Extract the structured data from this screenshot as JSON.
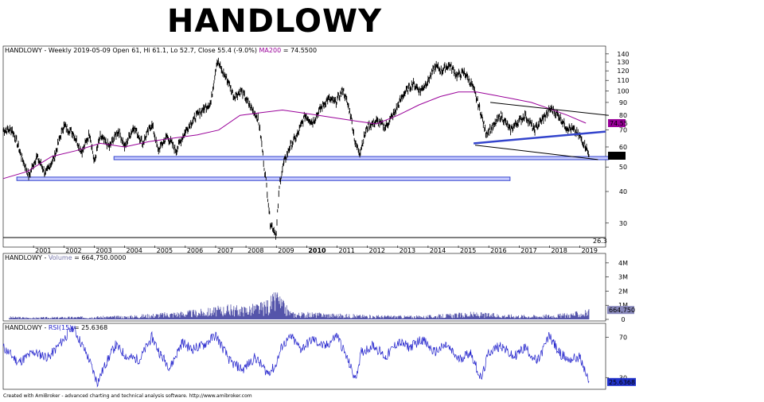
{
  "title": "HANDLOWY",
  "footer": "Created with AmiBroker - advanced charting and technical analysis software. http://www.amibroker.com",
  "colors": {
    "price": "#000000",
    "ma": "#990099",
    "trend": "#3344cc",
    "zone_fill": "#c8ccff",
    "zone_stroke": "#3344cc",
    "volume": "#5555aa",
    "rsi": "#2222cc"
  },
  "chart_data": [
    {
      "type": "line",
      "panel": "price",
      "header": {
        "prefix": "HANDLOWY - Weekly 2019-05-09 Open 61, Hi 61.1, Lo 52.7, Close 55.4 (-9.0%)",
        "ma_label": "MA200",
        "ma_value_text": " = 74.5500"
      },
      "scale": "log",
      "ylim": [
        26.3,
        145
      ],
      "yticks": [
        30,
        40,
        50,
        60,
        70,
        80,
        90,
        100,
        110,
        120,
        130,
        140
      ],
      "xticks": [
        "2001",
        "2002",
        "2003",
        "2004",
        "2005",
        "2006",
        "2007",
        "2008",
        "2009",
        "2010",
        "2011",
        "2012",
        "2013",
        "2014",
        "2015",
        "2016",
        "2017",
        "2018",
        "2019"
      ],
      "bold_xtick": "2010",
      "close_label": "55.4",
      "ma_label_value": "74.55",
      "min_label": "26.3",
      "series": [
        {
          "name": "Close",
          "x": [
            2000.0,
            2000.3,
            2000.6,
            2000.85,
            2001.1,
            2001.4,
            2001.7,
            2002.0,
            2002.3,
            2002.6,
            2002.85,
            2003.0,
            2003.2,
            2003.5,
            2003.8,
            2004.0,
            2004.3,
            2004.6,
            2004.9,
            2005.1,
            2005.4,
            2005.7,
            2006.0,
            2006.3,
            2006.6,
            2006.85,
            2007.05,
            2007.2,
            2007.4,
            2007.6,
            2007.85,
            2008.1,
            2008.4,
            2008.6,
            2008.8,
            2009.0,
            2009.12,
            2009.25,
            2009.45,
            2009.7,
            2009.95,
            2010.2,
            2010.45,
            2010.7,
            2010.95,
            2011.2,
            2011.45,
            2011.6,
            2011.75,
            2012.0,
            2012.3,
            2012.6,
            2012.9,
            2013.2,
            2013.5,
            2013.75,
            2014.0,
            2014.25,
            2014.45,
            2014.7,
            2014.95,
            2015.2,
            2015.45,
            2015.7,
            2015.9,
            2016.15,
            2016.4,
            2016.7,
            2016.95,
            2017.2,
            2017.5,
            2017.8,
            2018.05,
            2018.3,
            2018.55,
            2018.8,
            2019.0,
            2019.2,
            2019.3
          ],
          "y": [
            70,
            70,
            55,
            46,
            55,
            47,
            55,
            73,
            68,
            57,
            68,
            52,
            66,
            60,
            70,
            60,
            72,
            62,
            74,
            58,
            66,
            58,
            69,
            78,
            85,
            90,
            132,
            120,
            110,
            95,
            100,
            88,
            78,
            50,
            30,
            27,
            44,
            52,
            60,
            67,
            80,
            75,
            85,
            93,
            90,
            101,
            80,
            62,
            57,
            72,
            76,
            72,
            82,
            97,
            107,
            100,
            110,
            125,
            120,
            127,
            115,
            118,
            105,
            85,
            68,
            72,
            80,
            70,
            75,
            80,
            70,
            78,
            85,
            80,
            72,
            70,
            66,
            60,
            55.4
          ]
        },
        {
          "name": "MA200",
          "x": [
            2000.0,
            2000.8,
            2001.6,
            2002.4,
            2003.2,
            2004.0,
            2004.8,
            2005.6,
            2006.4,
            2007.1,
            2007.8,
            2008.5,
            2009.2,
            2009.8,
            2010.4,
            2011.0,
            2011.6,
            2012.3,
            2013.0,
            2013.7,
            2014.4,
            2015.0,
            2015.6,
            2016.2,
            2016.8,
            2017.4,
            2018.0,
            2018.6,
            2019.2
          ],
          "y": [
            45,
            48,
            55,
            58,
            62,
            60,
            63,
            65,
            67,
            70,
            80,
            82,
            84,
            82,
            80,
            78,
            76,
            74,
            80,
            88,
            95,
            99,
            99,
            96,
            93,
            90,
            85,
            80,
            74.55
          ]
        }
      ],
      "annotations": {
        "trendlines": [
          {
            "name": "upper-channel-line",
            "x": [
              2016.05,
              2019.95
            ],
            "y": [
              90,
              80
            ]
          },
          {
            "name": "lower-channel-line",
            "x": [
              2015.55,
              2019.6
            ],
            "y": [
              61,
              53.5
            ]
          },
          {
            "name": "blue-support-trendline",
            "x": [
              2015.5,
              2019.85
            ],
            "y": [
              62,
              69
            ]
          }
        ],
        "zones": [
          {
            "name": "support-zone-55",
            "x": [
              2003.65,
              2019.95
            ],
            "y": [
              53.5,
              55
            ]
          },
          {
            "name": "support-zone-45",
            "x": [
              2000.45,
              2016.7
            ],
            "y": [
              44.2,
              45.6
            ]
          }
        ]
      }
    },
    {
      "type": "bar",
      "panel": "volume",
      "header": {
        "prefix": "HANDLOWY - ",
        "name": "Volume",
        "value_text": " = 664,750.0000"
      },
      "ylim": [
        0,
        4500000
      ],
      "yticks": [
        {
          "v": 0,
          "label": "0"
        },
        {
          "v": 1000000,
          "label": "1M"
        },
        {
          "v": 2000000,
          "label": "2M"
        },
        {
          "v": 3000000,
          "label": "3M"
        },
        {
          "v": 4000000,
          "label": "4M"
        }
      ],
      "last_label": "664,750",
      "x": [
        2000.2,
        2001.0,
        2002.0,
        2003.0,
        2004.0,
        2005.5,
        2006.6,
        2007.4,
        2007.9,
        2008.6,
        2009.0,
        2009.5,
        2010.5,
        2012.0,
        2013.8,
        2015.5,
        2016.5,
        2017.5,
        2018.5,
        2019.3
      ],
      "values": [
        200000,
        150000,
        180000,
        220000,
        250000,
        500000,
        700000,
        1000000,
        900000,
        1200000,
        1900000,
        500000,
        450000,
        300000,
        250000,
        500000,
        350000,
        300000,
        400000,
        664750
      ],
      "spikes": [
        {
          "x": 2009.04,
          "v": 1900000
        },
        {
          "x": 2009.08,
          "v": 1300000
        },
        {
          "x": 2007.5,
          "v": 1050000
        },
        {
          "x": 2008.7,
          "v": 900000
        }
      ]
    },
    {
      "type": "line",
      "panel": "rsi",
      "header": {
        "prefix": "HANDLOWY - ",
        "name": "RSI(15)",
        "value_text": " = 25.6368"
      },
      "ylim": [
        20,
        82
      ],
      "yticks": [
        30,
        70
      ],
      "last_label": "25.6368",
      "x": [
        2000.0,
        2000.5,
        2001.0,
        2001.5,
        2002.0,
        2002.3,
        2002.8,
        2003.1,
        2003.4,
        2003.7,
        2004.1,
        2004.5,
        2004.9,
        2005.2,
        2005.5,
        2005.9,
        2006.2,
        2006.6,
        2007.0,
        2007.5,
        2007.9,
        2008.3,
        2008.7,
        2008.95,
        2009.2,
        2009.5,
        2009.8,
        2010.2,
        2010.6,
        2011.0,
        2011.4,
        2011.6,
        2011.8,
        2012.2,
        2012.6,
        2013.0,
        2013.4,
        2013.8,
        2014.2,
        2014.6,
        2015.0,
        2015.4,
        2015.75,
        2016.0,
        2016.4,
        2016.8,
        2017.2,
        2017.6,
        2018.0,
        2018.3,
        2018.6,
        2019.0,
        2019.3
      ],
      "values": [
        60,
        45,
        55,
        50,
        68,
        80,
        50,
        25,
        45,
        62,
        50,
        48,
        70,
        52,
        40,
        65,
        58,
        62,
        72,
        45,
        38,
        50,
        35,
        40,
        62,
        70,
        58,
        68,
        60,
        72,
        44,
        28,
        55,
        62,
        50,
        65,
        60,
        68,
        55,
        62,
        48,
        55,
        28,
        55,
        62,
        50,
        60,
        45,
        72,
        55,
        48,
        50,
        25.64
      ]
    }
  ]
}
